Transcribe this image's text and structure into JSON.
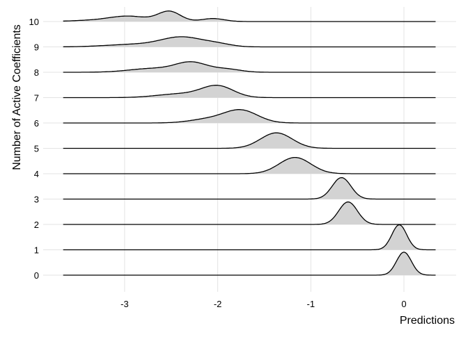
{
  "chart_data": {
    "type": "ridgeline",
    "xlabel": "Predictions",
    "ylabel": "Number of Active Coefficients",
    "xlim": [
      -3.66,
      0.34
    ],
    "x_ticks": [
      "-3",
      "-2",
      "-1",
      "0"
    ],
    "x_tick_values": [
      -3,
      -2,
      -1,
      0
    ],
    "categories": [
      "0",
      "1",
      "2",
      "3",
      "4",
      "5",
      "6",
      "7",
      "8",
      "9",
      "10"
    ],
    "grid": true,
    "fill_color": "#d3d3d3",
    "line_color": "#000000",
    "densities": [
      {
        "category": "0",
        "components": [
          [
            0,
            0.08,
            0.92
          ]
        ]
      },
      {
        "category": "1",
        "components": [
          [
            -0.05,
            0.08,
            1.0
          ]
        ]
      },
      {
        "category": "2",
        "components": [
          [
            -0.6,
            0.1,
            0.9
          ]
        ]
      },
      {
        "category": "3",
        "components": [
          [
            -0.67,
            0.1,
            0.86
          ]
        ]
      },
      {
        "category": "4",
        "components": [
          [
            -1.17,
            0.17,
            0.65
          ]
        ]
      },
      {
        "category": "5",
        "components": [
          [
            -1.37,
            0.17,
            0.62
          ]
        ]
      },
      {
        "category": "6",
        "components": [
          [
            -1.75,
            0.18,
            0.5
          ],
          [
            -2.1,
            0.2,
            0.15
          ]
        ]
      },
      {
        "category": "7",
        "components": [
          [
            -2.0,
            0.17,
            0.45
          ],
          [
            -2.4,
            0.25,
            0.15
          ]
        ]
      },
      {
        "category": "8",
        "components": [
          [
            -2.28,
            0.17,
            0.38
          ],
          [
            -2.7,
            0.25,
            0.15
          ],
          [
            -1.9,
            0.15,
            0.12
          ]
        ]
      },
      {
        "category": "9",
        "components": [
          [
            -2.38,
            0.22,
            0.38
          ],
          [
            -2.0,
            0.15,
            0.1
          ],
          [
            -2.9,
            0.3,
            0.1
          ]
        ]
      },
      {
        "category": "10",
        "components": [
          [
            -2.52,
            0.12,
            0.4
          ],
          [
            -2.95,
            0.2,
            0.2
          ],
          [
            -2.05,
            0.12,
            0.12
          ],
          [
            -3.3,
            0.25,
            0.05
          ]
        ]
      }
    ]
  }
}
